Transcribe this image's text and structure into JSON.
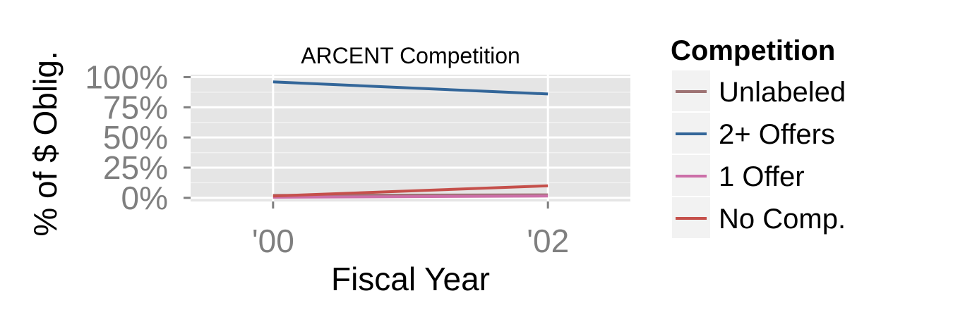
{
  "chart_data": {
    "type": "line",
    "title": "ARCENT Competition",
    "xlabel": "Fiscal Year",
    "ylabel": "% of $ Oblig.",
    "x": [
      "'00",
      "'02"
    ],
    "x_values": [
      2000,
      2002
    ],
    "xlim": [
      1999.4,
      2002.6
    ],
    "ylim": [
      -3,
      102
    ],
    "y_ticks": [
      "0%",
      "25%",
      "50%",
      "75%",
      "100%"
    ],
    "y_tick_values": [
      0,
      25,
      50,
      75,
      100
    ],
    "grid": true,
    "legend_position": "right",
    "legend_title": "Competition",
    "series": [
      {
        "name": "Unlabeled",
        "color": "#9e7374",
        "values": [
          2,
          2.5
        ]
      },
      {
        "name": "2+ Offers",
        "color": "#336699",
        "values": [
          96,
          86
        ]
      },
      {
        "name": "1 Offer",
        "color": "#cc6fa8",
        "values": [
          0.5,
          1.5
        ]
      },
      {
        "name": "No Comp.",
        "color": "#c5504b",
        "values": [
          1.5,
          10
        ]
      }
    ]
  }
}
